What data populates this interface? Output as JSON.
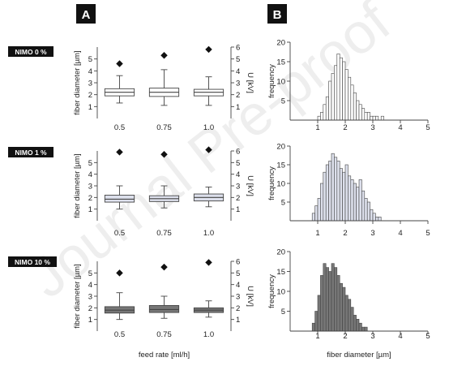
{
  "panel_labels": {
    "left": "A",
    "right": "B"
  },
  "watermark": "Journal Pre-proof",
  "rows": [
    {
      "label": "NIMO 0 %",
      "fill_color": "#ffffff"
    },
    {
      "label": "NIMO 1 %",
      "fill_color": "#dde0ec"
    },
    {
      "label": "NIMO 10 %",
      "fill_color": "#777777"
    }
  ],
  "axis_text": {
    "box_ylabel": "fiber diameter [µm]",
    "box_y2label": "U [kV]",
    "box_xlabel": "feed rate [ml/h]",
    "hist_ylabel": "frequency",
    "hist_xlabel": "fiber diameter [µm]"
  },
  "chart_data": [
    {
      "type": "box",
      "row": "NIMO 0 %",
      "categories": [
        "0.5",
        "0.75",
        "1.0"
      ],
      "ylim": [
        0,
        6
      ],
      "yticks": [
        "1",
        "2",
        "3",
        "4",
        "5"
      ],
      "y2lim": [
        0,
        6
      ],
      "y2ticks": [
        "1",
        "2",
        "3",
        "4",
        "5",
        "6"
      ],
      "boxes": [
        {
          "whisker_low": 1.3,
          "q1": 1.9,
          "median": 2.2,
          "q3": 2.5,
          "whisker_high": 3.6
        },
        {
          "whisker_low": 1.1,
          "q1": 1.85,
          "median": 2.2,
          "q3": 2.55,
          "whisker_high": 4.1
        },
        {
          "whisker_low": 1.1,
          "q1": 1.9,
          "median": 2.2,
          "q3": 2.45,
          "whisker_high": 3.5
        }
      ],
      "voltage": [
        4.6,
        5.3,
        5.8
      ]
    },
    {
      "type": "box",
      "row": "NIMO 1 %",
      "categories": [
        "0.5",
        "0.75",
        "1.0"
      ],
      "ylim": [
        0,
        6
      ],
      "yticks": [
        "1",
        "2",
        "3",
        "4",
        "5"
      ],
      "y2lim": [
        0,
        6
      ],
      "y2ticks": [
        "1",
        "2",
        "3",
        "4",
        "5",
        "6"
      ],
      "boxes": [
        {
          "whisker_low": 1.0,
          "q1": 1.6,
          "median": 1.85,
          "q3": 2.2,
          "whisker_high": 3.0
        },
        {
          "whisker_low": 1.1,
          "q1": 1.65,
          "median": 1.9,
          "q3": 2.15,
          "whisker_high": 3.0
        },
        {
          "whisker_low": 1.2,
          "q1": 1.7,
          "median": 2.0,
          "q3": 2.3,
          "whisker_high": 2.9
        }
      ],
      "voltage": [
        5.9,
        5.7,
        6.1
      ]
    },
    {
      "type": "box",
      "row": "NIMO 10 %",
      "categories": [
        "0.5",
        "0.75",
        "1.0"
      ],
      "ylim": [
        0,
        6
      ],
      "yticks": [
        "1",
        "2",
        "3",
        "4",
        "5"
      ],
      "y2lim": [
        0,
        6
      ],
      "y2ticks": [
        "1",
        "2",
        "3",
        "4",
        "5",
        "6"
      ],
      "boxes": [
        {
          "whisker_low": 1.0,
          "q1": 1.55,
          "median": 1.8,
          "q3": 2.1,
          "whisker_high": 3.3
        },
        {
          "whisker_low": 1.1,
          "q1": 1.6,
          "median": 1.85,
          "q3": 2.2,
          "whisker_high": 3.0
        },
        {
          "whisker_low": 1.2,
          "q1": 1.6,
          "median": 1.8,
          "q3": 2.0,
          "whisker_high": 2.6
        }
      ],
      "voltage": [
        5.0,
        5.5,
        5.9
      ]
    },
    {
      "type": "histogram",
      "row": "NIMO 0 %",
      "xlim": [
        0,
        5
      ],
      "xticks": [
        "1",
        "2",
        "3",
        "4",
        "5"
      ],
      "ylim": [
        0,
        20
      ],
      "yticks": [
        "5",
        "10",
        "15",
        "20"
      ],
      "bin_start": 1.0,
      "bin_width": 0.1,
      "counts": [
        1,
        2,
        4,
        6,
        10,
        12,
        14,
        17,
        16,
        15,
        13,
        11,
        9,
        7,
        5,
        4,
        3,
        2,
        2,
        1,
        1,
        1,
        0,
        1
      ]
    },
    {
      "type": "histogram",
      "row": "NIMO 1 %",
      "xlim": [
        0,
        5
      ],
      "xticks": [
        "1",
        "2",
        "3",
        "4",
        "5"
      ],
      "ylim": [
        0,
        20
      ],
      "yticks": [
        "5",
        "10",
        "15",
        "20"
      ],
      "bin_start": 0.8,
      "bin_width": 0.1,
      "counts": [
        2,
        4,
        6,
        10,
        13,
        15,
        16,
        18,
        17,
        16,
        14,
        13,
        15,
        12,
        11,
        10,
        9,
        11,
        8,
        6,
        5,
        3,
        2,
        1,
        1
      ]
    },
    {
      "type": "histogram",
      "row": "NIMO 10 %",
      "xlim": [
        0,
        5
      ],
      "xticks": [
        "1",
        "2",
        "3",
        "4",
        "5"
      ],
      "ylim": [
        0,
        20
      ],
      "yticks": [
        "5",
        "10",
        "15",
        "20"
      ],
      "bin_start": 0.8,
      "bin_width": 0.1,
      "counts": [
        2,
        5,
        9,
        14,
        17,
        16,
        15,
        17,
        16,
        14,
        12,
        11,
        9,
        8,
        6,
        4,
        3,
        2,
        1,
        1
      ]
    }
  ]
}
